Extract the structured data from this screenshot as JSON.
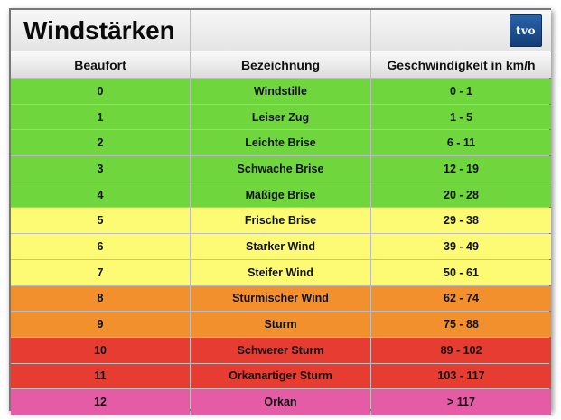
{
  "title": "Windstärken",
  "logo_text": "tvo",
  "headers": {
    "beaufort": "Beaufort",
    "bezeichnung": "Bezeichnung",
    "geschwindigkeit": "Geschwindigkeit in km/h"
  },
  "colors": {
    "green": "#6fd63e",
    "yellow": "#fdfb73",
    "orange": "#f2902e",
    "red": "#e63c32",
    "pink": "#e65ba6"
  },
  "rows": [
    {
      "beaufort": "0",
      "bezeichnung": "Windstille",
      "speed": "0 - 1",
      "color": "green"
    },
    {
      "beaufort": "1",
      "bezeichnung": "Leiser Zug",
      "speed": "1 - 5",
      "color": "green"
    },
    {
      "beaufort": "2",
      "bezeichnung": "Leichte Brise",
      "speed": "6 - 11",
      "color": "green"
    },
    {
      "beaufort": "3",
      "bezeichnung": "Schwache Brise",
      "speed": "12 - 19",
      "color": "green"
    },
    {
      "beaufort": "4",
      "bezeichnung": "Mäßige Brise",
      "speed": "20 - 28",
      "color": "green"
    },
    {
      "beaufort": "5",
      "bezeichnung": "Frische Brise",
      "speed": "29 - 38",
      "color": "yellow"
    },
    {
      "beaufort": "6",
      "bezeichnung": "Starker Wind",
      "speed": "39 - 49",
      "color": "yellow"
    },
    {
      "beaufort": "7",
      "bezeichnung": "Steifer Wind",
      "speed": "50 - 61",
      "color": "yellow"
    },
    {
      "beaufort": "8",
      "bezeichnung": "Stürmischer Wind",
      "speed": "62 - 74",
      "color": "orange"
    },
    {
      "beaufort": "9",
      "bezeichnung": "Sturm",
      "speed": "75 - 88",
      "color": "orange"
    },
    {
      "beaufort": "10",
      "bezeichnung": "Schwerer Sturm",
      "speed": "89 - 102",
      "color": "red"
    },
    {
      "beaufort": "11",
      "bezeichnung": "Orkanartiger Sturm",
      "speed": "103 - 117",
      "color": "red"
    },
    {
      "beaufort": "12",
      "bezeichnung": "Orkan",
      "speed": "> 117",
      "color": "pink"
    }
  ]
}
